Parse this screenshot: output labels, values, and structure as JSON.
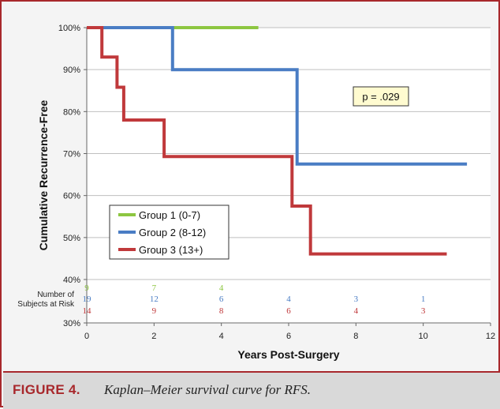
{
  "chart_data": {
    "type": "line",
    "step": true,
    "xlabel": "Years Post-Surgery",
    "ylabel": "Cumulative Recurrence-Free",
    "xlim": [
      0,
      12
    ],
    "ylim": [
      40,
      100
    ],
    "x_ticks": [
      "0",
      "2",
      "4",
      "6",
      "8",
      "10",
      "12"
    ],
    "y_ticks": [
      "100%",
      "90%",
      "80%",
      "70%",
      "60%",
      "50%",
      "40%"
    ],
    "y_extra_tick": "30%",
    "grid": true,
    "legend_position": "bottom-left",
    "series": [
      {
        "name": "Group 1 (0-7)",
        "color": "#8dc641",
        "x": [
          0,
          5.1
        ],
        "y": [
          100,
          100
        ]
      },
      {
        "name": "Group 2 (8-12)",
        "color": "#4a7dc4",
        "x": [
          0,
          2.55,
          2.55,
          6.25,
          6.25,
          11.3
        ],
        "y": [
          100,
          100,
          90,
          90,
          67.5,
          67.5
        ]
      },
      {
        "name": "Group 3 (13+)",
        "color": "#c0393b",
        "x": [
          0,
          0.45,
          0.45,
          0.9,
          0.9,
          1.1,
          1.1,
          1.25,
          1.25,
          2.3,
          2.3,
          6.1,
          6.1,
          6.65,
          6.65,
          10.7
        ],
        "y": [
          100,
          100,
          93,
          93,
          85.8,
          85.8,
          78,
          78,
          78,
          78,
          69.3,
          69.3,
          57.5,
          57.5,
          46.1,
          46.1
        ]
      }
    ],
    "annotation": "p = .029",
    "risk_table": {
      "label_line1": "Number of",
      "label_line2": "Subjects at Risk",
      "rows": [
        {
          "color": "#8dc641",
          "x": [
            0,
            2,
            4
          ],
          "values": [
            "9",
            "7",
            "4"
          ]
        },
        {
          "color": "#4a7dc4",
          "x": [
            0,
            2,
            4,
            6,
            8,
            10
          ],
          "values": [
            "19",
            "12",
            "6",
            "4",
            "3",
            "1"
          ]
        },
        {
          "color": "#c0393b",
          "x": [
            0,
            2,
            4,
            6,
            8,
            10
          ],
          "values": [
            "14",
            "9",
            "8",
            "6",
            "4",
            "3"
          ]
        }
      ]
    }
  },
  "caption": {
    "label": "FIGURE 4.",
    "text": "Kaplan–Meier survival curve for RFS."
  }
}
